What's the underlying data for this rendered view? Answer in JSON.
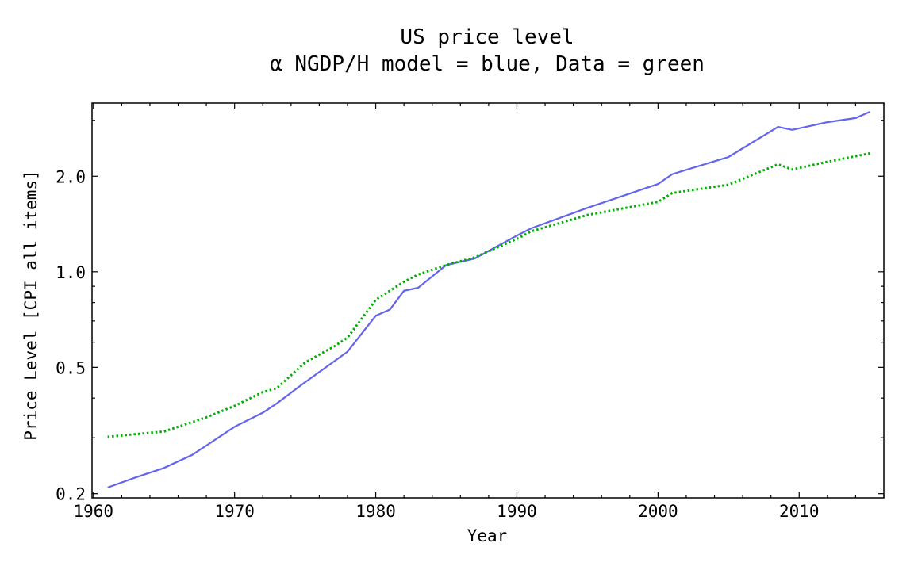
{
  "chart_data": {
    "type": "line",
    "title": "US price level",
    "subtitle": "α NGDP/H model = blue, Data = green",
    "xlabel": "Year",
    "ylabel": "Price Level [CPI all items]",
    "yscale": "log",
    "xlim": [
      1959.9,
      2016.0
    ],
    "ylim": [
      0.194,
      3.4
    ],
    "grid": false,
    "x_ticks": [
      "1960",
      "1970",
      "1980",
      "1990",
      "2000",
      "2010"
    ],
    "y_ticks": [
      "0.2",
      "0.5",
      "1.0",
      "2.0"
    ],
    "series": [
      {
        "color": "#6464f0",
        "style": "solid",
        "x": [
          1961,
          1963,
          1965,
          1967,
          1970,
          1972,
          1973,
          1975,
          1977,
          1978,
          1980,
          1981,
          1982,
          1983,
          1985,
          1987,
          1990,
          1991,
          1995,
          2000,
          2001,
          2005,
          2008.5,
          2009.5,
          2012,
          2014,
          2015
        ],
        "y": [
          0.209,
          0.225,
          0.241,
          0.265,
          0.325,
          0.36,
          0.385,
          0.449,
          0.52,
          0.56,
          0.727,
          0.76,
          0.871,
          0.89,
          1.05,
          1.1,
          1.3,
          1.37,
          1.59,
          1.89,
          2.03,
          2.3,
          2.86,
          2.8,
          2.96,
          3.05,
          3.19
        ]
      },
      {
        "color": "#00b000",
        "style": "dotted",
        "x": [
          1961,
          1965,
          1968,
          1970,
          1972,
          1973,
          1975,
          1977,
          1978,
          1980,
          1982,
          1983,
          1985,
          1987,
          1990,
          1991,
          1995,
          2000,
          2001,
          2005,
          2008.5,
          2009.5,
          2012,
          2015
        ],
        "y": [
          0.302,
          0.314,
          0.348,
          0.378,
          0.418,
          0.43,
          0.518,
          0.58,
          0.62,
          0.816,
          0.93,
          0.98,
          1.05,
          1.11,
          1.27,
          1.34,
          1.51,
          1.66,
          1.77,
          1.88,
          2.18,
          2.1,
          2.22,
          2.36
        ]
      }
    ]
  }
}
